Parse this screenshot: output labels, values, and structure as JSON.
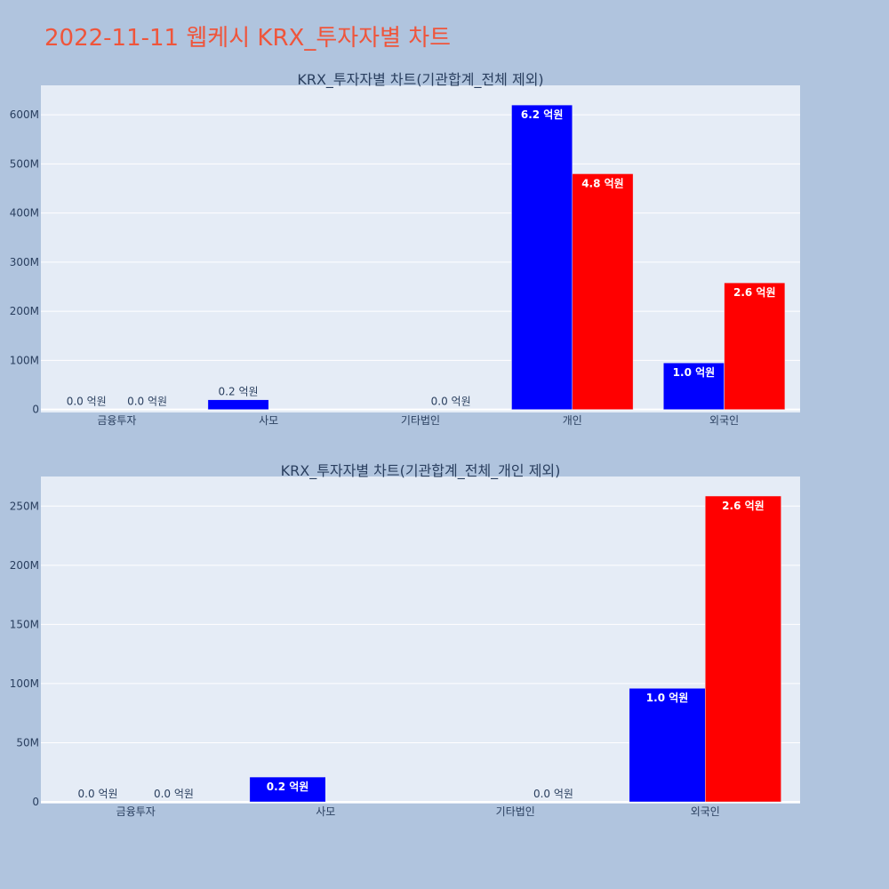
{
  "page": {
    "title": "2022-11-11 웹케시 KRX_투자자별 차트"
  },
  "colors": {
    "page_bg": "#b0c4de",
    "plot_bg": "#e5ecf6",
    "title": "#ef553b",
    "series_1": "#0000ff",
    "series_2": "#ff0000"
  },
  "chart_data": [
    {
      "type": "bar",
      "title": "KRX_투자자별 차트(기관합계_전체 제외)",
      "categories": [
        "금융투자",
        "사모",
        "기타법인",
        "개인",
        "외국인"
      ],
      "series": [
        {
          "color": "#0000ff",
          "values": [
            0,
            20000000,
            null,
            620000000,
            95000000
          ]
        },
        {
          "color": "#ff0000",
          "values": [
            0,
            null,
            0,
            480000000,
            258000000
          ]
        }
      ],
      "labels": [
        [
          "0.0 억원",
          "0.2 억원",
          "",
          "6.2 억원",
          "1.0 억원"
        ],
        [
          "0.0 억원",
          "",
          "0.0 억원",
          "4.8 억원",
          "2.6 억원"
        ]
      ],
      "yticks": [
        0,
        100000000,
        200000000,
        300000000,
        400000000,
        500000000,
        600000000
      ],
      "ytick_labels": [
        "0",
        "100M",
        "200M",
        "300M",
        "400M",
        "500M",
        "600M"
      ],
      "ylim": [
        -6000000,
        660000000
      ],
      "grid": true,
      "legend": "none"
    },
    {
      "type": "bar",
      "title": "KRX_투자자별 차트(기관합계_전체_개인 제외)",
      "categories": [
        "금융투자",
        "사모",
        "기타법인",
        "외국인"
      ],
      "series": [
        {
          "color": "#0000ff",
          "values": [
            0,
            21000000,
            null,
            96000000
          ]
        },
        {
          "color": "#ff0000",
          "values": [
            0,
            null,
            0,
            258500000
          ]
        }
      ],
      "labels": [
        [
          "0.0 억원",
          "0.2 억원",
          "",
          "1.0 억원"
        ],
        [
          "0.0 억원",
          "",
          "0.0 억원",
          "2.6 억원"
        ]
      ],
      "yticks": [
        0,
        50000000,
        100000000,
        150000000,
        200000000,
        250000000
      ],
      "ytick_labels": [
        "0",
        "50M",
        "100M",
        "150M",
        "200M",
        "250M"
      ],
      "ylim": [
        -1500000,
        275000000
      ],
      "grid": true,
      "legend": "none"
    }
  ]
}
